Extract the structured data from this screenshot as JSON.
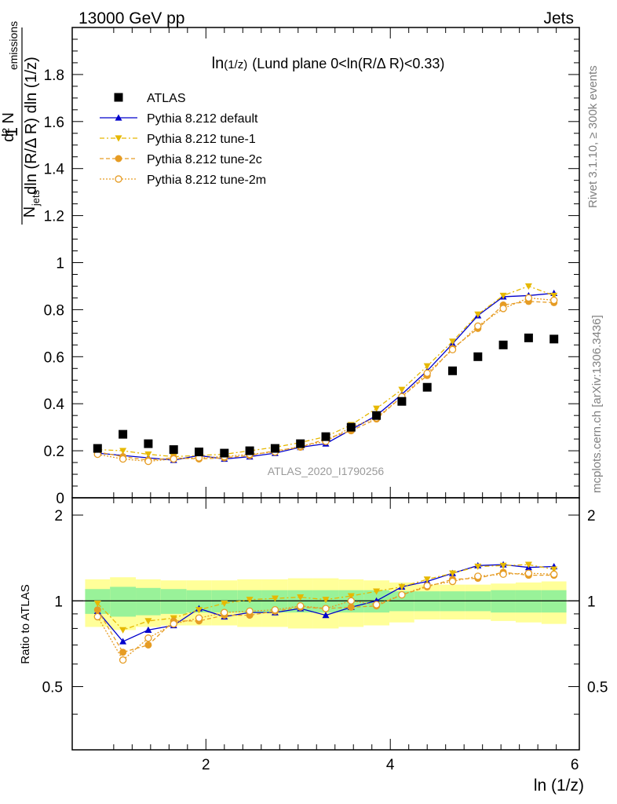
{
  "header": {
    "left": "13000 GeV pp",
    "right": "Jets"
  },
  "side": {
    "rivet": "Rivet 3.1.10, ≥ 300k events",
    "mcplots": "mcplots.cern.ch [arXiv:1306.3436]"
  },
  "chart_data": {
    "type": "scatter",
    "title_main": "ln",
    "title_small": "(1/z)",
    "title_rest": "(Lund plane 0<ln(R/Δ R)<0.33)",
    "watermark": "ATLAS_2020_I1790256",
    "xlabel": "ln (1/z)",
    "ylabel_top": "d² N_emissions / (N_jets dln (R/Δ R) dln (1/z)) · 1",
    "ylabel_ratio": "Ratio to ATLAS",
    "xlim": [
      0.55,
      6.05
    ],
    "ylim_main": [
      0,
      2.0
    ],
    "ylim_ratio": [
      0.3,
      2.3
    ],
    "xticks": [
      "2",
      "4",
      "6"
    ],
    "yticks_main": [
      "0",
      "0.2",
      "0.4",
      "0.6",
      "0.8",
      "1",
      "1.2",
      "1.4",
      "1.6",
      "1.8"
    ],
    "yticks_ratio": [
      "0.5",
      "1",
      "2"
    ],
    "bin_edges": [
      0.69,
      0.96,
      1.24,
      1.51,
      1.79,
      2.06,
      2.34,
      2.61,
      2.89,
      3.16,
      3.44,
      3.71,
      3.99,
      4.26,
      4.54,
      4.81,
      5.09,
      5.36,
      5.64,
      5.91
    ],
    "x": [
      0.825,
      1.1,
      1.375,
      1.65,
      1.925,
      2.2,
      2.475,
      2.75,
      3.025,
      3.3,
      3.575,
      3.85,
      4.125,
      4.4,
      4.675,
      4.95,
      5.225,
      5.5,
      5.775
    ],
    "legend": [
      {
        "label": "ATLAS",
        "color": "#000000",
        "marker": "square",
        "dash": ""
      },
      {
        "label": "Pythia 8.212 default",
        "color": "#0000cc",
        "marker": "triangle-up",
        "dash": ""
      },
      {
        "label": "Pythia 8.212 tune-1",
        "color": "#e6b800",
        "marker": "triangle-down",
        "dash": "6,3,2,3"
      },
      {
        "label": "Pythia 8.212 tune-2c",
        "color": "#e69c24",
        "marker": "circle",
        "dash": "5,3"
      },
      {
        "label": "Pythia 8.212 tune-2m",
        "color": "#e69c24",
        "marker": "circle-open",
        "dash": "2,2"
      }
    ],
    "data": {
      "name": "ATLAS",
      "values": [
        0.21,
        0.27,
        0.23,
        0.205,
        0.195,
        0.19,
        0.2,
        0.21,
        0.23,
        0.26,
        0.3,
        0.35,
        0.41,
        0.47,
        0.54,
        0.6,
        0.65,
        0.68,
        0.675
      ]
    },
    "series": [
      {
        "name": "Pythia 8.212 default",
        "values": [
          0.19,
          0.18,
          0.17,
          0.16,
          0.18,
          0.165,
          0.175,
          0.19,
          0.215,
          0.23,
          0.29,
          0.35,
          0.44,
          0.54,
          0.655,
          0.775,
          0.855,
          0.86,
          0.87
        ],
        "ratio": [
          0.92,
          0.72,
          0.79,
          0.82,
          0.94,
          0.88,
          0.91,
          0.91,
          0.94,
          0.89,
          0.95,
          1.0,
          1.12,
          1.17,
          1.25,
          1.33,
          1.34,
          1.31,
          1.32
        ]
      },
      {
        "name": "Pythia 8.212 tune-1",
        "values": [
          0.205,
          0.2,
          0.185,
          0.175,
          0.18,
          0.185,
          0.2,
          0.215,
          0.235,
          0.26,
          0.31,
          0.38,
          0.46,
          0.56,
          0.665,
          0.78,
          0.86,
          0.9,
          0.86
        ],
        "ratio": [
          0.98,
          0.79,
          0.85,
          0.87,
          0.93,
          0.98,
          1.01,
          1.02,
          1.03,
          1.01,
          1.04,
          1.08,
          1.12,
          1.19,
          1.25,
          1.32,
          1.33,
          1.34,
          1.29
        ]
      },
      {
        "name": "Pythia 8.212 tune-2c",
        "values": [
          0.195,
          0.175,
          0.16,
          0.17,
          0.165,
          0.17,
          0.18,
          0.2,
          0.215,
          0.25,
          0.285,
          0.335,
          0.43,
          0.52,
          0.635,
          0.72,
          0.82,
          0.835,
          0.83
        ],
        "ratio": [
          0.93,
          0.66,
          0.7,
          0.85,
          0.85,
          0.89,
          0.89,
          0.92,
          0.95,
          0.94,
          0.95,
          0.96,
          1.05,
          1.12,
          1.19,
          1.2,
          1.26,
          1.23,
          1.23
        ]
      },
      {
        "name": "Pythia 8.212 tune-2m",
        "values": [
          0.185,
          0.165,
          0.155,
          0.165,
          0.17,
          0.175,
          0.185,
          0.195,
          0.22,
          0.24,
          0.3,
          0.34,
          0.43,
          0.53,
          0.63,
          0.73,
          0.805,
          0.85,
          0.84
        ],
        "ratio": [
          0.88,
          0.62,
          0.74,
          0.83,
          0.87,
          0.91,
          0.92,
          0.93,
          0.96,
          0.94,
          1.0,
          0.97,
          1.05,
          1.13,
          1.17,
          1.22,
          1.24,
          1.25,
          1.24
        ]
      }
    ],
    "band_inner": [
      0.1,
      0.12,
      0.11,
      0.1,
      0.09,
      0.09,
      0.09,
      0.09,
      0.09,
      0.09,
      0.09,
      0.09,
      0.08,
      0.08,
      0.08,
      0.08,
      0.09,
      0.09,
      0.09
    ],
    "band_outer": [
      0.19,
      0.21,
      0.19,
      0.18,
      0.18,
      0.18,
      0.19,
      0.19,
      0.2,
      0.2,
      0.19,
      0.18,
      0.16,
      0.14,
      0.14,
      0.14,
      0.15,
      0.16,
      0.17
    ],
    "band_colors": {
      "inner": "#99f299",
      "outer": "#ffff99"
    }
  }
}
